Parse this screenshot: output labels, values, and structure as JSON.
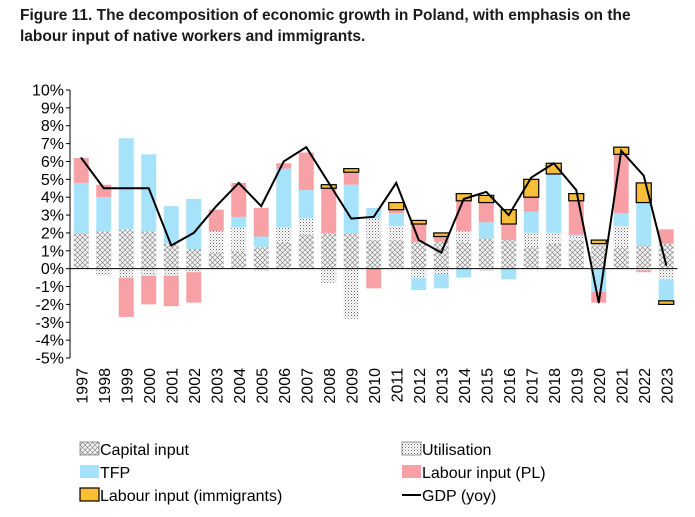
{
  "title_line1": "Figure 11. The decomposition of economic growth in Poland, with emphasis on the",
  "title_line2": "labour input of native workers and immigrants.",
  "chart_data": {
    "type": "bar",
    "subtype": "stacked bar with line overlay",
    "title": "Figure 11. The decomposition of economic growth in Poland, with emphasis on the labour input of native workers and immigrants.",
    "xlabel": "",
    "ylabel": "",
    "ylim": [
      -0.05,
      0.1
    ],
    "ytick_step": 0.01,
    "y_tick_labels": [
      "-5%",
      "-4%",
      "-3%",
      "-2%",
      "-1%",
      "0%",
      "1%",
      "2%",
      "3%",
      "4%",
      "5%",
      "6%",
      "7%",
      "8%",
      "9%",
      "10%"
    ],
    "categories": [
      "1997",
      "1998",
      "1999",
      "2000",
      "2001",
      "2002",
      "2003",
      "2004",
      "2005",
      "2006",
      "2007",
      "2008",
      "2009",
      "2010",
      "2011",
      "2012",
      "2013",
      "2014",
      "2015",
      "2016",
      "2017",
      "2018",
      "2019",
      "2020",
      "2021",
      "2022",
      "2023"
    ],
    "series": [
      {
        "name": "Capital input",
        "kind": "bar",
        "color": "#f2f2f2",
        "pattern": "crosshatch",
        "values": [
          0.02,
          0.021,
          0.022,
          0.021,
          0.014,
          0.011,
          0.009,
          0.01,
          0.012,
          0.015,
          0.019,
          0.02,
          0.02,
          0.016,
          0.016,
          0.015,
          0.015,
          0.015,
          0.017,
          0.016,
          0.012,
          0.014,
          0.016,
          0.013,
          0.012,
          0.013,
          0.014
        ]
      },
      {
        "name": "Utilisation",
        "kind": "bar",
        "color": "#ffffff",
        "pattern": "dots",
        "values": [
          0.0,
          -0.004,
          -0.005,
          -0.004,
          -0.004,
          -0.002,
          0.012,
          0.013,
          -0.001,
          0.008,
          0.009,
          -0.008,
          -0.028,
          0.012,
          0.008,
          -0.005,
          -0.003,
          0.006,
          -0.001,
          0.0,
          0.008,
          0.006,
          0.002,
          0.001,
          0.012,
          -0.001,
          -0.006
        ]
      },
      {
        "name": "TFP",
        "kind": "bar",
        "color": "#a6e3fa",
        "values": [
          0.028,
          0.019,
          0.051,
          0.043,
          0.021,
          0.028,
          0.0,
          0.006,
          0.006,
          0.033,
          0.016,
          0.0,
          0.027,
          0.006,
          0.007,
          -0.007,
          -0.008,
          -0.005,
          0.009,
          -0.006,
          0.012,
          0.033,
          0.001,
          -0.013,
          0.007,
          0.024,
          -0.012
        ]
      },
      {
        "name": "Labour input (PL)",
        "kind": "bar",
        "color": "#f7a0a6",
        "values": [
          0.014,
          0.007,
          -0.022,
          -0.016,
          -0.017,
          -0.017,
          0.012,
          0.019,
          0.016,
          0.003,
          0.021,
          0.025,
          0.007,
          -0.011,
          0.002,
          0.01,
          0.003,
          0.017,
          0.011,
          0.009,
          0.008,
          0.0,
          0.019,
          -0.006,
          0.033,
          -0.001,
          0.008
        ]
      },
      {
        "name": "Labour input (immigrants)",
        "kind": "bar",
        "color": "#f9be37",
        "values": [
          0.0,
          0.0,
          0.0,
          0.0,
          0.0,
          0.0,
          0.0,
          0.0,
          0.0,
          0.0,
          0.0,
          0.002,
          0.002,
          0.0,
          0.004,
          0.002,
          0.002,
          0.004,
          0.004,
          0.008,
          0.01,
          0.006,
          0.004,
          0.002,
          0.004,
          0.011,
          -0.002
        ]
      },
      {
        "name": "GDP (yoy)",
        "kind": "line",
        "color": "#000000",
        "values": [
          0.062,
          0.045,
          0.045,
          0.045,
          0.013,
          0.02,
          0.035,
          0.048,
          0.035,
          0.06,
          0.068,
          0.048,
          0.028,
          0.029,
          0.048,
          0.016,
          0.009,
          0.039,
          0.043,
          0.03,
          0.051,
          0.059,
          0.044,
          -0.019,
          0.066,
          0.052,
          0.002
        ]
      }
    ],
    "legend": {
      "placement": "bottom",
      "entries": [
        "Capital input",
        "Utilisation",
        "TFP",
        "Labour input (PL)",
        "Labour input (immigrants)",
        "GDP (yoy)"
      ]
    },
    "grid": false
  }
}
